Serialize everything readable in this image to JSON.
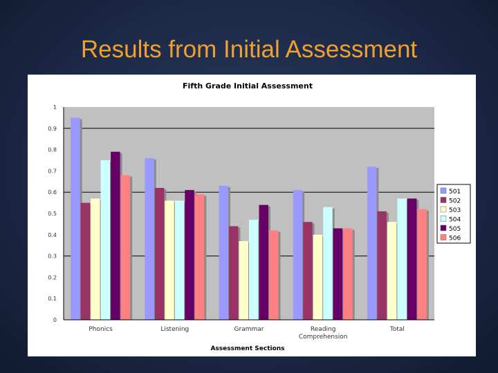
{
  "slide": {
    "title": "Results from Initial Assessment"
  },
  "chart_data": {
    "type": "bar",
    "title": "Fifth Grade Initial Assessment",
    "xlabel": "Assessment Sections",
    "ylabel": "",
    "ylim": [
      0,
      1
    ],
    "yticks": [
      "0",
      "0.1",
      "0.2",
      "0.3",
      "0.4",
      "0.5",
      "0.6",
      "0.7",
      "0.8",
      "0.9",
      "1"
    ],
    "grid": "major lines at 0.3, 0.6, 0.9",
    "legend": "right",
    "categories": [
      "Phonics",
      "Listening",
      "Grammar",
      "Reading Comprehension",
      "Total"
    ],
    "category_lines": [
      [
        "Phonics"
      ],
      [
        "Listening"
      ],
      [
        "Grammar"
      ],
      [
        "Reading",
        "Comprehension"
      ],
      [
        "Total"
      ]
    ],
    "series": [
      {
        "name": "501",
        "color": "#9999ff",
        "values": [
          0.95,
          0.76,
          0.63,
          0.61,
          0.72
        ]
      },
      {
        "name": "502",
        "color": "#993366",
        "values": [
          0.55,
          0.62,
          0.44,
          0.46,
          0.51
        ]
      },
      {
        "name": "503",
        "color": "#ffffcc",
        "values": [
          0.57,
          0.56,
          0.37,
          0.4,
          0.46
        ]
      },
      {
        "name": "504",
        "color": "#ccffff",
        "values": [
          0.75,
          0.56,
          0.47,
          0.53,
          0.57
        ]
      },
      {
        "name": "505",
        "color": "#660066",
        "values": [
          0.79,
          0.61,
          0.54,
          0.43,
          0.57
        ]
      },
      {
        "name": "506",
        "color": "#ff8080",
        "values": [
          0.68,
          0.59,
          0.42,
          0.43,
          0.52
        ]
      }
    ]
  }
}
